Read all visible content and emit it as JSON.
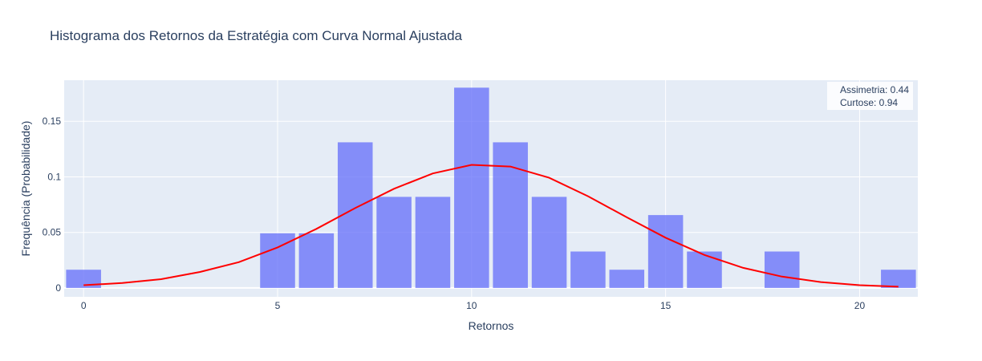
{
  "chart_data": {
    "type": "bar",
    "title": "Histograma dos Retornos da Estratégia com Curva Normal Ajustada",
    "xlabel": "Retornos",
    "ylabel": "Frequência (Probabilidade)",
    "xlim": [
      -0.5,
      21.5
    ],
    "ylim": [
      -0.008,
      0.187
    ],
    "grid": true,
    "x_ticks": [
      0,
      5,
      10,
      15,
      20
    ],
    "x_tick_labels": [
      "0",
      "5",
      "10",
      "15",
      "20"
    ],
    "y_ticks": [
      0,
      0.05,
      0.1,
      0.15
    ],
    "y_tick_labels": [
      "0",
      "0.05",
      "0.1",
      "0.15"
    ],
    "bar_color": "#636efa",
    "bar_opacity": 0.75,
    "plot_bgcolor": "#e5ecf6",
    "curve_color": "#ff0000",
    "bins": [
      {
        "x": 0,
        "y": 0.0164
      },
      {
        "x": 1,
        "y": 0
      },
      {
        "x": 2,
        "y": 0
      },
      {
        "x": 3,
        "y": 0
      },
      {
        "x": 4,
        "y": 0
      },
      {
        "x": 5,
        "y": 0.0492
      },
      {
        "x": 6,
        "y": 0.0492
      },
      {
        "x": 7,
        "y": 0.1311
      },
      {
        "x": 8,
        "y": 0.082
      },
      {
        "x": 9,
        "y": 0.082
      },
      {
        "x": 10,
        "y": 0.1803
      },
      {
        "x": 11,
        "y": 0.1311
      },
      {
        "x": 12,
        "y": 0.082
      },
      {
        "x": 13,
        "y": 0.0328
      },
      {
        "x": 14,
        "y": 0.0164
      },
      {
        "x": 15,
        "y": 0.0656
      },
      {
        "x": 16,
        "y": 0.0328
      },
      {
        "x": 17,
        "y": 0
      },
      {
        "x": 18,
        "y": 0.0328
      },
      {
        "x": 19,
        "y": 0
      },
      {
        "x": 20,
        "y": 0
      },
      {
        "x": 21,
        "y": 0.0164
      }
    ],
    "curve": {
      "x": [
        0,
        1,
        2,
        3,
        4,
        5,
        6,
        7,
        8,
        9,
        10,
        11,
        12,
        13,
        14,
        15,
        16,
        17,
        18,
        19,
        20,
        21
      ],
      "y": [
        0.0025,
        0.0044,
        0.0079,
        0.0144,
        0.0232,
        0.0365,
        0.0532,
        0.0719,
        0.0893,
        0.1031,
        0.1108,
        0.1093,
        0.0992,
        0.0826,
        0.0636,
        0.0452,
        0.0297,
        0.0181,
        0.0102,
        0.0053,
        0.0025,
        0.0011
      ]
    },
    "annotations": [
      "Assimetria: 0.44",
      "Curtose: 0.94"
    ]
  }
}
